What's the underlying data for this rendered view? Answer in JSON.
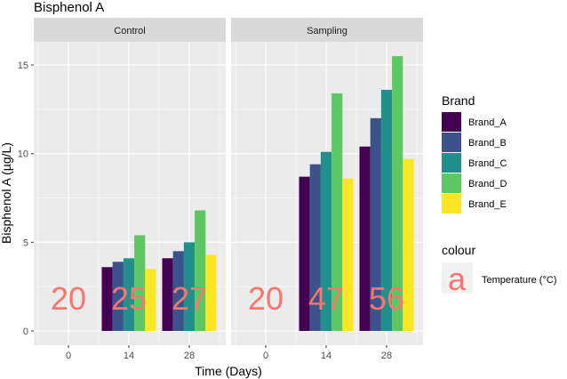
{
  "chart_data": {
    "type": "bar",
    "title": "Bisphenol A",
    "xlabel": "Time (Days)",
    "ylabel": "Bisphenol A (µg/L)",
    "ylim": [
      -0.6,
      16.4
    ],
    "yticks": [
      0,
      5,
      10,
      15
    ],
    "categories": [
      "0",
      "14",
      "28"
    ],
    "panels": [
      {
        "name": "Control",
        "temperature_labels": [
          "20",
          "25",
          "27"
        ],
        "series": [
          {
            "name": "Brand_A",
            "values": [
              0,
              3.6,
              4.1
            ]
          },
          {
            "name": "Brand_B",
            "values": [
              0,
              3.9,
              4.5
            ]
          },
          {
            "name": "Brand_C",
            "values": [
              0,
              4.1,
              5.0
            ]
          },
          {
            "name": "Brand_D",
            "values": [
              0,
              5.4,
              6.8
            ]
          },
          {
            "name": "Brand_E",
            "values": [
              0,
              3.5,
              4.3
            ]
          }
        ]
      },
      {
        "name": "Sampling",
        "temperature_labels": [
          "20",
          "47",
          "56"
        ],
        "series": [
          {
            "name": "Brand_A",
            "values": [
              0,
              8.7,
              10.4
            ]
          },
          {
            "name": "Brand_B",
            "values": [
              0,
              9.4,
              12.0
            ]
          },
          {
            "name": "Brand_C",
            "values": [
              0,
              10.1,
              13.6
            ]
          },
          {
            "name": "Brand_D",
            "values": [
              0,
              13.4,
              15.5
            ]
          },
          {
            "name": "Brand_E",
            "values": [
              0,
              8.6,
              9.7
            ]
          }
        ]
      }
    ],
    "legend": {
      "title": "Brand",
      "position": "right",
      "entries": [
        "Brand_A",
        "Brand_B",
        "Brand_C",
        "Brand_D",
        "Brand_E"
      ],
      "colors": [
        "#440154",
        "#3B528B",
        "#21908C",
        "#5DC863",
        "#FDE725"
      ]
    },
    "colour_legend": {
      "title": "colour",
      "key": "a",
      "label": "Temperature (°C)",
      "color": "#F8766D"
    }
  }
}
